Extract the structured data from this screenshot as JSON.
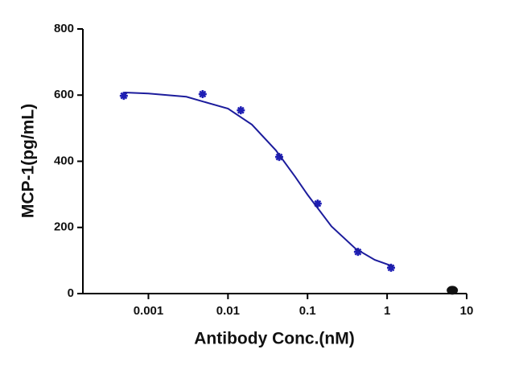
{
  "chart_data": {
    "type": "scatter",
    "xlabel": "Antibody Conc.(nM)",
    "ylabel": "MCP-1(pg/mL)",
    "xscale": "log",
    "xlim": [
      0.00015,
      10
    ],
    "xticks": [
      0.001,
      0.01,
      0.1,
      1,
      10
    ],
    "ylim": [
      0,
      800
    ],
    "yticks": [
      0,
      200,
      400,
      600,
      800
    ],
    "series": [
      {
        "color": "#1f1fb4",
        "marker": "asterisk",
        "x": [
          0.00049,
          0.0048,
          0.0145,
          0.044,
          0.134,
          0.43,
          1.12
        ],
        "values": [
          598,
          603,
          554,
          413,
          272,
          126,
          78
        ]
      },
      {
        "color": "#1c1c9c",
        "line": true,
        "x": [
          0.0005,
          0.001,
          0.003,
          0.01,
          0.02,
          0.04,
          0.07,
          0.1,
          0.2,
          0.4,
          0.7,
          1.2
        ],
        "values": [
          608,
          605,
          595,
          559,
          511,
          433,
          353,
          299,
          203,
          136,
          102,
          82
        ]
      },
      {
        "color": "#111111",
        "marker": "circle",
        "x": [
          6.6
        ],
        "values": [
          10
        ]
      }
    ]
  }
}
